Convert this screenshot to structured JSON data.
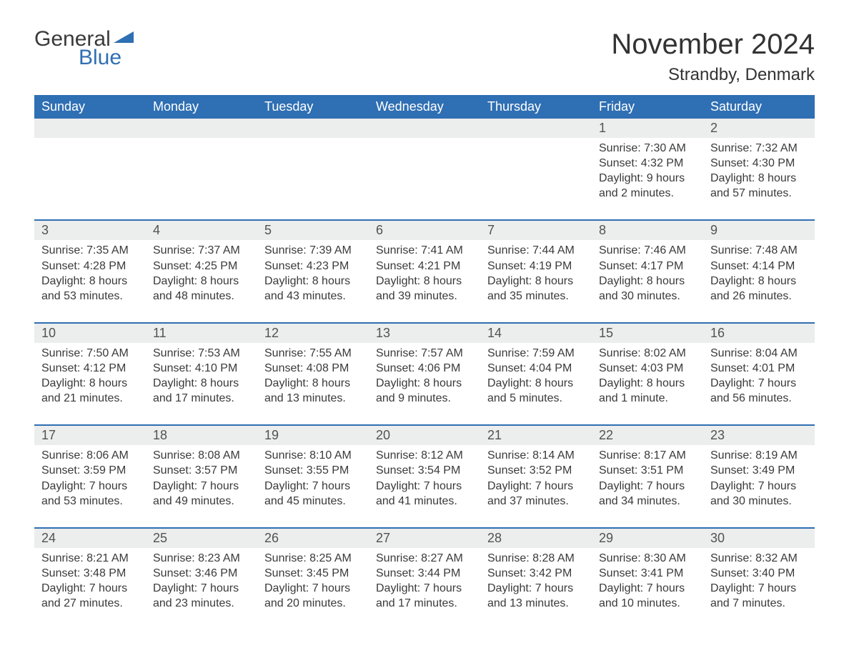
{
  "brand": {
    "part1": "General",
    "part2": "Blue",
    "flag_color": "#2f6fb3"
  },
  "title": "November 2024",
  "location": "Strandby, Denmark",
  "colors": {
    "header_bg": "#2f6fb3",
    "header_text": "#ffffff",
    "day_bar_bg": "#eceded",
    "rule": "#2f6fb3",
    "body_text": "#3a3a3a"
  },
  "weekdays": [
    "Sunday",
    "Monday",
    "Tuesday",
    "Wednesday",
    "Thursday",
    "Friday",
    "Saturday"
  ],
  "first_week_empty_bar": true,
  "weeks": [
    [
      null,
      null,
      null,
      null,
      null,
      {
        "n": "1",
        "sunrise": "Sunrise: 7:30 AM",
        "sunset": "Sunset: 4:32 PM",
        "d1": "Daylight: 9 hours",
        "d2": "and 2 minutes."
      },
      {
        "n": "2",
        "sunrise": "Sunrise: 7:32 AM",
        "sunset": "Sunset: 4:30 PM",
        "d1": "Daylight: 8 hours",
        "d2": "and 57 minutes."
      }
    ],
    [
      {
        "n": "3",
        "sunrise": "Sunrise: 7:35 AM",
        "sunset": "Sunset: 4:28 PM",
        "d1": "Daylight: 8 hours",
        "d2": "and 53 minutes."
      },
      {
        "n": "4",
        "sunrise": "Sunrise: 7:37 AM",
        "sunset": "Sunset: 4:25 PM",
        "d1": "Daylight: 8 hours",
        "d2": "and 48 minutes."
      },
      {
        "n": "5",
        "sunrise": "Sunrise: 7:39 AM",
        "sunset": "Sunset: 4:23 PM",
        "d1": "Daylight: 8 hours",
        "d2": "and 43 minutes."
      },
      {
        "n": "6",
        "sunrise": "Sunrise: 7:41 AM",
        "sunset": "Sunset: 4:21 PM",
        "d1": "Daylight: 8 hours",
        "d2": "and 39 minutes."
      },
      {
        "n": "7",
        "sunrise": "Sunrise: 7:44 AM",
        "sunset": "Sunset: 4:19 PM",
        "d1": "Daylight: 8 hours",
        "d2": "and 35 minutes."
      },
      {
        "n": "8",
        "sunrise": "Sunrise: 7:46 AM",
        "sunset": "Sunset: 4:17 PM",
        "d1": "Daylight: 8 hours",
        "d2": "and 30 minutes."
      },
      {
        "n": "9",
        "sunrise": "Sunrise: 7:48 AM",
        "sunset": "Sunset: 4:14 PM",
        "d1": "Daylight: 8 hours",
        "d2": "and 26 minutes."
      }
    ],
    [
      {
        "n": "10",
        "sunrise": "Sunrise: 7:50 AM",
        "sunset": "Sunset: 4:12 PM",
        "d1": "Daylight: 8 hours",
        "d2": "and 21 minutes."
      },
      {
        "n": "11",
        "sunrise": "Sunrise: 7:53 AM",
        "sunset": "Sunset: 4:10 PM",
        "d1": "Daylight: 8 hours",
        "d2": "and 17 minutes."
      },
      {
        "n": "12",
        "sunrise": "Sunrise: 7:55 AM",
        "sunset": "Sunset: 4:08 PM",
        "d1": "Daylight: 8 hours",
        "d2": "and 13 minutes."
      },
      {
        "n": "13",
        "sunrise": "Sunrise: 7:57 AM",
        "sunset": "Sunset: 4:06 PM",
        "d1": "Daylight: 8 hours",
        "d2": "and 9 minutes."
      },
      {
        "n": "14",
        "sunrise": "Sunrise: 7:59 AM",
        "sunset": "Sunset: 4:04 PM",
        "d1": "Daylight: 8 hours",
        "d2": "and 5 minutes."
      },
      {
        "n": "15",
        "sunrise": "Sunrise: 8:02 AM",
        "sunset": "Sunset: 4:03 PM",
        "d1": "Daylight: 8 hours",
        "d2": "and 1 minute."
      },
      {
        "n": "16",
        "sunrise": "Sunrise: 8:04 AM",
        "sunset": "Sunset: 4:01 PM",
        "d1": "Daylight: 7 hours",
        "d2": "and 56 minutes."
      }
    ],
    [
      {
        "n": "17",
        "sunrise": "Sunrise: 8:06 AM",
        "sunset": "Sunset: 3:59 PM",
        "d1": "Daylight: 7 hours",
        "d2": "and 53 minutes."
      },
      {
        "n": "18",
        "sunrise": "Sunrise: 8:08 AM",
        "sunset": "Sunset: 3:57 PM",
        "d1": "Daylight: 7 hours",
        "d2": "and 49 minutes."
      },
      {
        "n": "19",
        "sunrise": "Sunrise: 8:10 AM",
        "sunset": "Sunset: 3:55 PM",
        "d1": "Daylight: 7 hours",
        "d2": "and 45 minutes."
      },
      {
        "n": "20",
        "sunrise": "Sunrise: 8:12 AM",
        "sunset": "Sunset: 3:54 PM",
        "d1": "Daylight: 7 hours",
        "d2": "and 41 minutes."
      },
      {
        "n": "21",
        "sunrise": "Sunrise: 8:14 AM",
        "sunset": "Sunset: 3:52 PM",
        "d1": "Daylight: 7 hours",
        "d2": "and 37 minutes."
      },
      {
        "n": "22",
        "sunrise": "Sunrise: 8:17 AM",
        "sunset": "Sunset: 3:51 PM",
        "d1": "Daylight: 7 hours",
        "d2": "and 34 minutes."
      },
      {
        "n": "23",
        "sunrise": "Sunrise: 8:19 AM",
        "sunset": "Sunset: 3:49 PM",
        "d1": "Daylight: 7 hours",
        "d2": "and 30 minutes."
      }
    ],
    [
      {
        "n": "24",
        "sunrise": "Sunrise: 8:21 AM",
        "sunset": "Sunset: 3:48 PM",
        "d1": "Daylight: 7 hours",
        "d2": "and 27 minutes."
      },
      {
        "n": "25",
        "sunrise": "Sunrise: 8:23 AM",
        "sunset": "Sunset: 3:46 PM",
        "d1": "Daylight: 7 hours",
        "d2": "and 23 minutes."
      },
      {
        "n": "26",
        "sunrise": "Sunrise: 8:25 AM",
        "sunset": "Sunset: 3:45 PM",
        "d1": "Daylight: 7 hours",
        "d2": "and 20 minutes."
      },
      {
        "n": "27",
        "sunrise": "Sunrise: 8:27 AM",
        "sunset": "Sunset: 3:44 PM",
        "d1": "Daylight: 7 hours",
        "d2": "and 17 minutes."
      },
      {
        "n": "28",
        "sunrise": "Sunrise: 8:28 AM",
        "sunset": "Sunset: 3:42 PM",
        "d1": "Daylight: 7 hours",
        "d2": "and 13 minutes."
      },
      {
        "n": "29",
        "sunrise": "Sunrise: 8:30 AM",
        "sunset": "Sunset: 3:41 PM",
        "d1": "Daylight: 7 hours",
        "d2": "and 10 minutes."
      },
      {
        "n": "30",
        "sunrise": "Sunrise: 8:32 AM",
        "sunset": "Sunset: 3:40 PM",
        "d1": "Daylight: 7 hours",
        "d2": "and 7 minutes."
      }
    ]
  ]
}
